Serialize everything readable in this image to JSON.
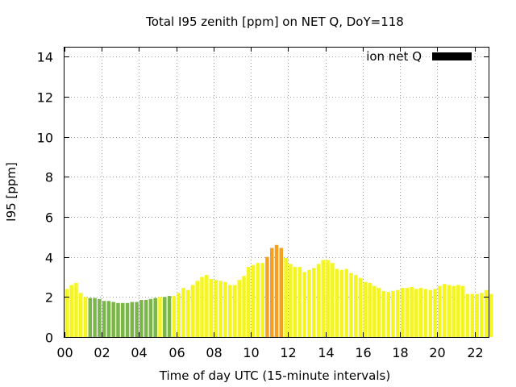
{
  "chart_data": {
    "type": "bar",
    "title": "Total I95 zenith [ppm] on NET Q, DoY=118",
    "xlabel": "Time of day UTC (15-minute intervals)",
    "ylabel": "I95 [ppm]",
    "xlim": [
      0,
      22.75
    ],
    "ylim": [
      0,
      14.5
    ],
    "x_ticks": [
      {
        "value": 0,
        "label": "00"
      },
      {
        "value": 2,
        "label": "02"
      },
      {
        "value": 4,
        "label": "04"
      },
      {
        "value": 6,
        "label": "06"
      },
      {
        "value": 8,
        "label": "08"
      },
      {
        "value": 10,
        "label": "10"
      },
      {
        "value": 12,
        "label": "12"
      },
      {
        "value": 14,
        "label": "14"
      },
      {
        "value": 16,
        "label": "16"
      },
      {
        "value": 18,
        "label": "18"
      },
      {
        "value": 20,
        "label": "20"
      },
      {
        "value": 22,
        "label": "22"
      }
    ],
    "y_ticks": [
      0,
      2,
      4,
      6,
      8,
      10,
      12,
      14
    ],
    "grid": true,
    "legend": {
      "label": "ion net Q",
      "position": "top-right",
      "color": "#000000"
    },
    "series": {
      "interval_hours": 0.25,
      "values": [
        2.4,
        2.6,
        2.7,
        2.2,
        2.0,
        1.95,
        1.95,
        1.9,
        1.8,
        1.8,
        1.75,
        1.7,
        1.7,
        1.7,
        1.75,
        1.75,
        1.85,
        1.85,
        1.9,
        1.95,
        2.0,
        2.0,
        2.05,
        2.05,
        2.2,
        2.45,
        2.35,
        2.6,
        2.8,
        3.0,
        3.1,
        2.9,
        2.85,
        2.8,
        2.75,
        2.6,
        2.6,
        2.85,
        3.05,
        3.5,
        3.6,
        3.7,
        3.7,
        4.0,
        4.45,
        4.6,
        4.45,
        3.95,
        3.65,
        3.5,
        3.5,
        3.25,
        3.35,
        3.45,
        3.65,
        3.85,
        3.85,
        3.7,
        3.4,
        3.35,
        3.4,
        3.2,
        3.1,
        2.95,
        2.75,
        2.7,
        2.55,
        2.45,
        2.3,
        2.25,
        2.3,
        2.35,
        2.45,
        2.45,
        2.5,
        2.4,
        2.45,
        2.4,
        2.35,
        2.4,
        2.55,
        2.65,
        2.6,
        2.55,
        2.6,
        2.55,
        2.15,
        2.15,
        2.15,
        2.2,
        2.35,
        2.15
      ],
      "colors": [
        "#f5f520",
        "#f5f520",
        "#f5f520",
        "#f5f520",
        "#f5f520",
        "#7ab648",
        "#7ab648",
        "#7ab648",
        "#7ab648",
        "#7ab648",
        "#7ab648",
        "#7ab648",
        "#7ab648",
        "#7ab648",
        "#7ab648",
        "#7ab648",
        "#7ab648",
        "#7ab648",
        "#7ab648",
        "#7ab648",
        "#f5f520",
        "#7ab648",
        "#7ab648",
        "#f5f520",
        "#f5f520",
        "#f5f520",
        "#f5f520",
        "#f5f520",
        "#f5f520",
        "#f5f520",
        "#f5f520",
        "#f5f520",
        "#f5f520",
        "#f5f520",
        "#f5f520",
        "#f5f520",
        "#f5f520",
        "#f5f520",
        "#f5f520",
        "#f5f520",
        "#f5f520",
        "#f5f520",
        "#f5f520",
        "#f5a020",
        "#f5a020",
        "#f5a020",
        "#f5a020",
        "#f5f520",
        "#f5f520",
        "#f5f520",
        "#f5f520",
        "#f5f520",
        "#f5f520",
        "#f5f520",
        "#f5f520",
        "#f5f520",
        "#f5f520",
        "#f5f520",
        "#f5f520",
        "#f5f520",
        "#f5f520",
        "#f5f520",
        "#f5f520",
        "#f5f520",
        "#f5f520",
        "#f5f520",
        "#f5f520",
        "#f5f520",
        "#f5f520",
        "#f5f520",
        "#f5f520",
        "#f5f520",
        "#f5f520",
        "#f5f520",
        "#f5f520",
        "#f5f520",
        "#f5f520",
        "#f5f520",
        "#f5f520",
        "#f5f520",
        "#f5f520",
        "#f5f520",
        "#f5f520",
        "#f5f520",
        "#f5f520",
        "#f5f520",
        "#f5f520",
        "#f5f520",
        "#f5f520",
        "#f5f520",
        "#f5f520",
        "#f5f520"
      ]
    }
  }
}
